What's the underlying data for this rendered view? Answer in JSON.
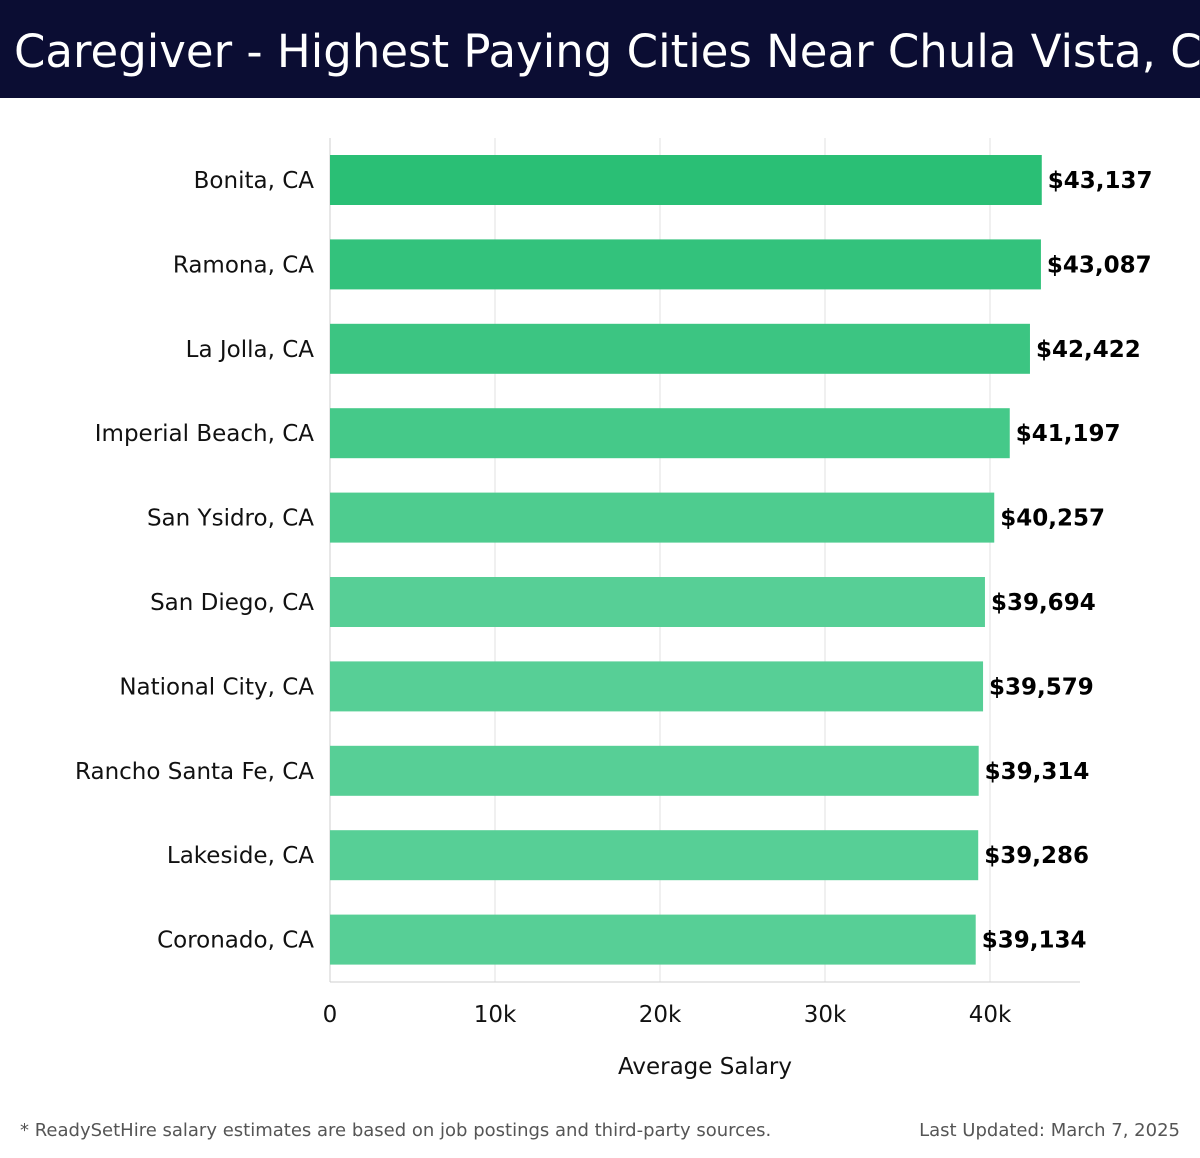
{
  "header": {
    "title": "Caregiver - Highest Paying Cities Near Chula Vista, CA"
  },
  "chart_data": {
    "type": "bar",
    "orientation": "horizontal",
    "title": "Caregiver - Highest Paying Cities Near Chula Vista, CA",
    "xlabel": "Average Salary",
    "ylabel": "",
    "categories": [
      "Bonita, CA",
      "Ramona, CA",
      "La Jolla, CA",
      "Imperial Beach, CA",
      "San Ysidro, CA",
      "San Diego, CA",
      "National City, CA",
      "Rancho Santa Fe, CA",
      "Lakeside, CA",
      "Coronado, CA"
    ],
    "values": [
      43137,
      43087,
      42422,
      41197,
      40257,
      39694,
      39579,
      39314,
      39286,
      39134
    ],
    "value_labels": [
      "$43,137",
      "$43,087",
      "$42,422",
      "$41,197",
      "$40,257",
      "$39,694",
      "$39,579",
      "$39,314",
      "$39,286",
      "$39,134"
    ],
    "xlim": [
      0,
      45500
    ],
    "xticks": [
      0,
      10000,
      20000,
      30000,
      40000
    ],
    "xtick_labels": [
      "0",
      "10k",
      "20k",
      "30k",
      "40k"
    ],
    "grid": true,
    "colors": {
      "bar_high": "#2abf75",
      "bar_low": "#57cf96",
      "grid": "#e2e2e2",
      "axis": "#cfcfcf"
    }
  },
  "footer": {
    "note": "* ReadySetHire salary estimates are based on job postings and third-party sources.",
    "updated": "Last Updated: March 7, 2025"
  }
}
